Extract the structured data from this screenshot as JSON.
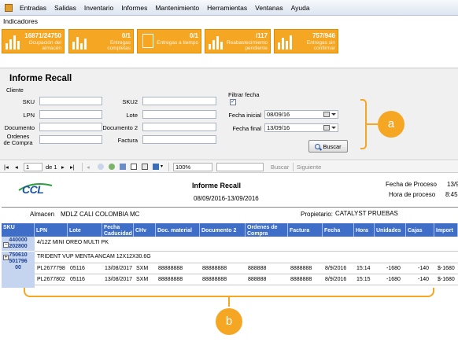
{
  "menubar": {
    "items": [
      "Entradas",
      "Salidas",
      "Inventario",
      "Informes",
      "Mantenimiento",
      "Herramientas",
      "Ventanas",
      "Ayuda"
    ]
  },
  "indicators": {
    "title": "Indicadores",
    "tiles": [
      {
        "value": "16871/24750",
        "label_line1": "Ocupación del",
        "label_line2": "almacén"
      },
      {
        "value": "0/1",
        "label_line1": "Entregas",
        "label_line2": "completas"
      },
      {
        "value": "0/1",
        "label_line1": "Entregas a tiempo",
        "label_line2": ""
      },
      {
        "value": "/117",
        "label_line1": "Reabastecimiento",
        "label_line2": "pendiente"
      },
      {
        "value": "757/946",
        "label_line1": "Entregas sin",
        "label_line2": "confirmar"
      }
    ]
  },
  "form": {
    "title": "Informe Recall",
    "cliente_label": "Cliente",
    "sku_label": "SKU",
    "lpn_label": "LPN",
    "documento_label": "Documento",
    "ordenes_label_1": "Ordenes",
    "ordenes_label_2": "de Compra",
    "sku2_label": "SKU2",
    "lote_label": "Lote",
    "documento2_label": "Documento 2",
    "factura_label": "Factura",
    "filtrar_fecha_label": "Filtrar fecha",
    "filtrar_fecha_checked": "✓",
    "fecha_inicial_label": "Fecha inicial",
    "fecha_inicial_value": "08/09/16",
    "fecha_final_label": "Fecha final",
    "fecha_final_value": "13/09/16",
    "buscar_label": "Buscar"
  },
  "toolbar": {
    "page_value": "1",
    "of_label": "de 1",
    "zoom_value": "100%",
    "find_label": "Buscar",
    "next_label": "Siguiente"
  },
  "report": {
    "title": "Informe Recall",
    "date_range": "08/09/2016-13/09/2016",
    "fecha_proceso_label": "Fecha de Proceso",
    "fecha_proceso_value": "13/9/",
    "hora_proceso_label": "Hora de proceso",
    "hora_proceso_value": "8:45",
    "almacen_label": "Almacen",
    "almacen_value": "MDLZ CALI COLOMBIA MC",
    "propietario_label": "Propietario:",
    "propietario_value": "CATALYST PRUEBAS",
    "logo_text": "CCL",
    "columns": [
      "SKU",
      "LPN",
      "Lote",
      "Fecha Caducidad",
      "CHv",
      "Doc. material",
      "Documento 2",
      "Ordenes de Compra",
      "Factura",
      "Fecha",
      "Hora",
      "Unidades",
      "Cajas",
      "Import"
    ],
    "groups": [
      {
        "sku_line1": "440000",
        "sku_line2": "202800",
        "description": "4/12Z MINI OREO MULTI PK"
      },
      {
        "sku_line1": "750610",
        "sku_line2": "501796",
        "sku_line3": "00",
        "description": "TRIDENT VUP MENTA ANCAM 12X12X30.6G"
      }
    ],
    "rows": [
      {
        "lpn": "PL2677798",
        "lote": "05116",
        "fecha_cad": "13/08/2017",
        "chv": "SXM",
        "doc_material": "88888888",
        "doc2": "88888888",
        "ordenes": "888888",
        "factura": "8888888",
        "fecha": "8/9/2016",
        "hora": "15:14",
        "unidades": "-1680",
        "cajas": "-140",
        "importe": "$-1680"
      },
      {
        "lpn": "PL2677802",
        "lote": "05116",
        "fecha_cad": "13/08/2017",
        "chv": "SXM",
        "doc_material": "88888888",
        "doc2": "88888888",
        "ordenes": "888888",
        "factura": "8888888",
        "fecha": "8/9/2016",
        "hora": "15:15",
        "unidades": "-1680",
        "cajas": "-140",
        "importe": "$-1680"
      }
    ]
  },
  "callouts": {
    "a": "a",
    "b": "b"
  },
  "colors": {
    "accent_orange": "#f5a623",
    "table_header_blue": "#3e6ec7",
    "sku_cell_blue": "#c5d5f0"
  }
}
